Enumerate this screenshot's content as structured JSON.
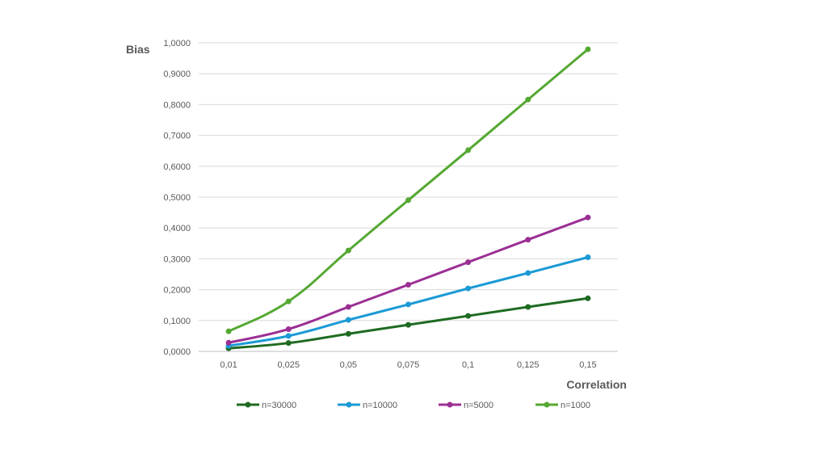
{
  "chart_data": {
    "type": "line",
    "title": "",
    "xlabel": "Correlation",
    "ylabel": "Bias",
    "categories": [
      "0,01",
      "0,025",
      "0,05",
      "0,075",
      "0,1",
      "0,125",
      "0,15"
    ],
    "y_ticks": [
      "0,0000",
      "0,1000",
      "0,2000",
      "0,3000",
      "0,4000",
      "0,5000",
      "0,6000",
      "0,7000",
      "0,8000",
      "0,9000",
      "1,0000"
    ],
    "ylim": [
      0,
      1.0
    ],
    "grid": true,
    "legend_position": "bottom",
    "series": [
      {
        "name": "n=30000",
        "color": "#1e6b22",
        "values": [
          0.01,
          0.027,
          0.057,
          0.086,
          0.115,
          0.144,
          0.172
        ]
      },
      {
        "name": "n=10000",
        "color": "#1b9ad6",
        "values": [
          0.018,
          0.05,
          0.102,
          0.152,
          0.204,
          0.254,
          0.305
        ]
      },
      {
        "name": "n=5000",
        "color": "#9b2f94",
        "values": [
          0.028,
          0.072,
          0.144,
          0.216,
          0.289,
          0.362,
          0.434
        ]
      },
      {
        "name": "n=1000",
        "color": "#55a832",
        "values": [
          0.065,
          0.162,
          0.327,
          0.49,
          0.652,
          0.816,
          0.979
        ]
      }
    ]
  }
}
